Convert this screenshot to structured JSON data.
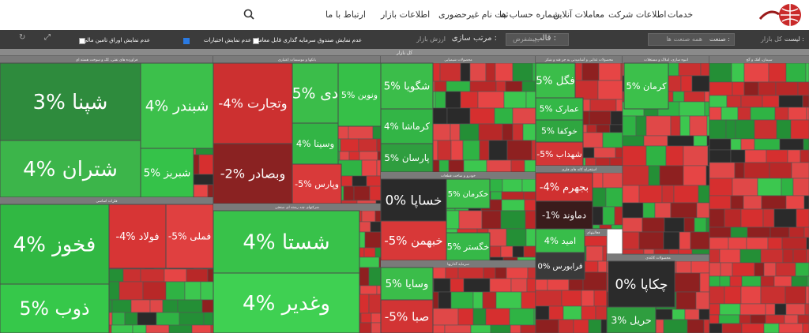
{
  "nav": {
    "items": [
      "خدمات",
      "اطلاعات شرکت",
      "معاملات آنلاین",
      "شماره حساب ها",
      "ثبت نام غیرحضوری",
      "اطلاعات بازار",
      "ارتباط با ما"
    ]
  },
  "filters": {
    "list_label": "لیست :",
    "list_value": "کل بازار",
    "industry_label": "صنعت :",
    "industry_value": "همه صنعت ها",
    "template_label": "قالب :",
    "template_value": "پیشفرض",
    "sort_label": "مرتب سازی :",
    "sort_value": "ارزش بازار",
    "checkboxes": [
      {
        "label": "عدم نمایش صندوق سرمایه گذاری قابل معامله",
        "checked": false
      },
      {
        "label": "عدم نمایش اختیارات",
        "checked": true
      },
      {
        "label": "عدم نمایش اوراق تامین مالی",
        "checked": false
      }
    ]
  },
  "treemap": {
    "title": "کل بازار",
    "sectors": [
      {
        "name": "فراورده های نفتی، کک و سوخت هسته ای",
        "tiles": [
          {
            "label": "شپنا %3",
            "color": "#2e8b3d"
          },
          {
            "label": "شتران %4",
            "color": "#3cb54a"
          },
          {
            "label": "شبندر %4",
            "color": "#3cc04b"
          },
          {
            "label": "شبریز %5",
            "color": "#35c249"
          }
        ]
      },
      {
        "name": "فلزات اساسی",
        "tiles": [
          {
            "label": "فخوز %4",
            "color": "#31b843"
          },
          {
            "label": "ذوب %5",
            "color": "#36c84a"
          },
          {
            "label": "فولاد %4-",
            "color": "#d73535"
          },
          {
            "label": "فملی %5-",
            "color": "#e04040"
          }
        ]
      },
      {
        "name": "بانکها و موسسات اعتباری",
        "tiles": [
          {
            "label": "وتجارت %4-",
            "color": "#cc3030"
          },
          {
            "label": "وبصادر %2-",
            "color": "#8a2222"
          },
          {
            "label": "دی %5",
            "color": "#3bbd4a"
          },
          {
            "label": "وسینا %4",
            "color": "#32b545"
          },
          {
            "label": "ونوین %5",
            "color": "#36c048"
          },
          {
            "label": "وپارس %5-",
            "color": "#d93a3a"
          }
        ]
      },
      {
        "name": "شرکتهای چند رشته ای صنعتی",
        "tiles": [
          {
            "label": "شستا %4",
            "color": "#38c24a"
          },
          {
            "label": "وغدیر %4",
            "color": "#3fd052"
          }
        ]
      },
      {
        "name": "محصولات شیمیایی",
        "tiles": [
          {
            "label": "شگویا %5",
            "color": "#3bbd4a"
          },
          {
            "label": "کرماشا %4",
            "color": "#33b546"
          },
          {
            "label": "پارسان %5",
            "color": "#2f9e3f"
          }
        ]
      },
      {
        "name": "خودرو و ساخت قطعات",
        "tiles": [
          {
            "label": "خساپا %0",
            "color": "#2a2a2a"
          },
          {
            "label": "خبهمن %5-",
            "color": "#d83838"
          },
          {
            "label": "خکرمان %5",
            "color": "#3bbd4a"
          },
          {
            "label": "خگستر %5",
            "color": "#36b848"
          }
        ]
      },
      {
        "name": "سرمایه گذاریها",
        "tiles": [
          {
            "label": "وسایا %5",
            "color": "#3bbd4a"
          },
          {
            "label": "صبا %5-",
            "color": "#d23434"
          }
        ]
      },
      {
        "name": "محصولات غذایی و آشامیدنی به جز قند و شکر",
        "tiles": [
          {
            "label": "فگل %5",
            "color": "#3bbd4a"
          },
          {
            "label": "عمارک %5",
            "color": "#34b847"
          },
          {
            "label": "خوکفا %5",
            "color": "#2fa640"
          },
          {
            "label": "شهداب %5-",
            "color": "#d33636"
          }
        ]
      },
      {
        "name": "استخراج کانه های فلزی",
        "tiles": [
          {
            "label": "بجهرم %4-",
            "color": "#d03030"
          },
          {
            "label": "دماوند %1-",
            "color": "#3a1c1c"
          }
        ]
      },
      {
        "name": "فعالیتهای کمکی به نهادهای مالی واسط",
        "tiles": [
          {
            "label": "امید %4",
            "color": "#38bd4a"
          },
          {
            "label": "فرابورس %0",
            "color": "#3a3a3a"
          }
        ]
      },
      {
        "name": "محصولات کاغذی",
        "tiles": [
          {
            "label": "چکاپا %0",
            "color": "#2b2b2b"
          },
          {
            "label": "حریل %3",
            "color": "#2f9e3f"
          }
        ]
      },
      {
        "name": "انبوه سازی، املاک و مستغلات",
        "tiles": [
          {
            "label": "کرمان %5",
            "color": "#3cc04b"
          }
        ]
      },
      {
        "name": "سیمان، آهک و گچ",
        "tiles": []
      }
    ]
  }
}
